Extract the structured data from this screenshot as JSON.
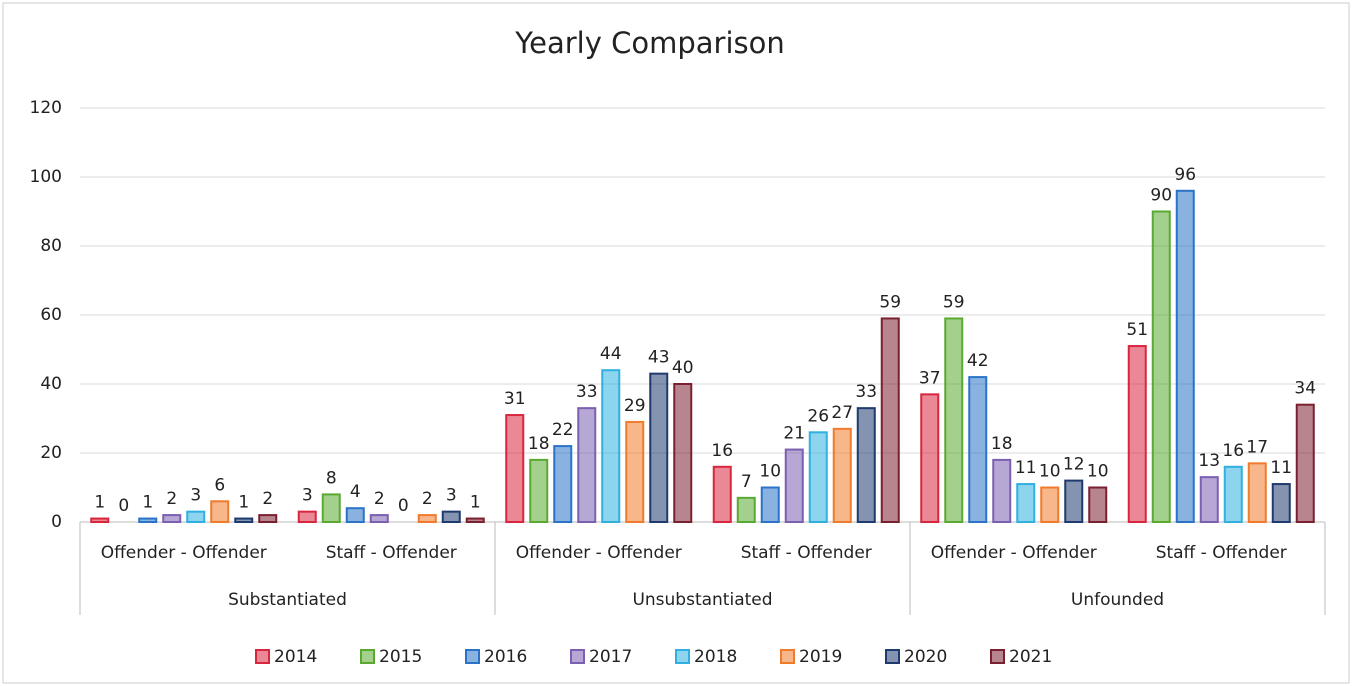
{
  "chart_data": {
    "type": "bar",
    "title": "Yearly Comparison",
    "categories": [
      "Offender - Offender",
      "Staff - Offender",
      "Offender - Offender",
      "Staff - Offender",
      "Offender - Offender",
      "Staff - Offender"
    ],
    "groups": [
      "Substantiated",
      "Unsubstantiated",
      "Unfounded"
    ],
    "series": [
      {
        "name": "2014",
        "color": "#d9263f",
        "values": [
          1,
          3,
          31,
          16,
          37,
          51
        ]
      },
      {
        "name": "2015",
        "color": "#5aaa32",
        "values": [
          0,
          8,
          18,
          7,
          59,
          90
        ]
      },
      {
        "name": "2016",
        "color": "#2a73c8",
        "values": [
          1,
          4,
          22,
          10,
          42,
          96
        ]
      },
      {
        "name": "2017",
        "color": "#7b5fb0",
        "values": [
          2,
          2,
          33,
          21,
          18,
          13
        ]
      },
      {
        "name": "2018",
        "color": "#2fb0e0",
        "values": [
          3,
          0,
          44,
          26,
          11,
          16
        ]
      },
      {
        "name": "2019",
        "color": "#f07b2c",
        "values": [
          6,
          2,
          29,
          27,
          10,
          17
        ]
      },
      {
        "name": "2020",
        "color": "#1f3a6e",
        "values": [
          1,
          3,
          43,
          33,
          12,
          11
        ]
      },
      {
        "name": "2021",
        "color": "#7a2030",
        "values": [
          2,
          1,
          40,
          59,
          10,
          34
        ]
      }
    ],
    "ylim": [
      0,
      120
    ],
    "yticks": [
      0,
      20,
      40,
      60,
      80,
      100,
      120
    ],
    "grid": true,
    "legend": "bottom"
  }
}
